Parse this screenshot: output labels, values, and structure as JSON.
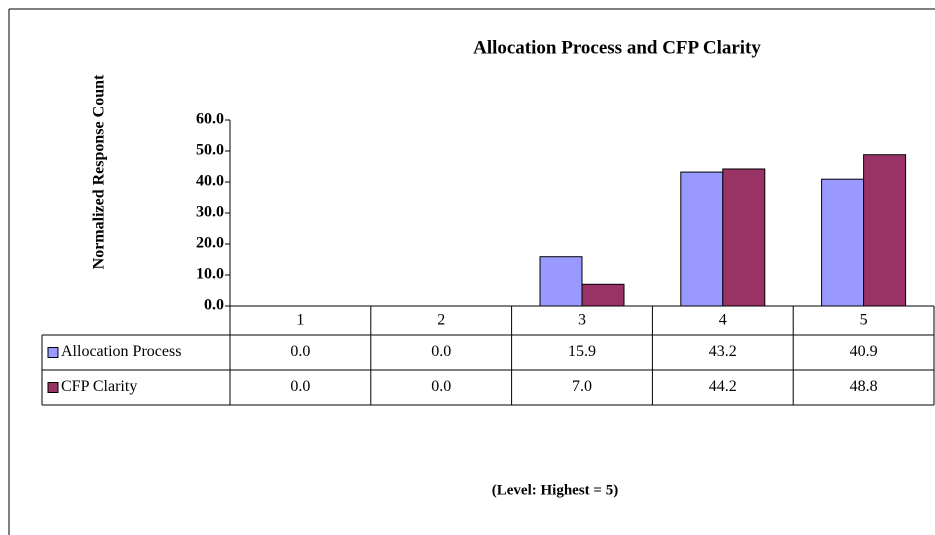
{
  "chart_data": {
    "type": "bar",
    "title": "Allocation Process and CFP Clarity",
    "y_label": "Normalized Response Count",
    "x_label": "(Level: Highest = 5)",
    "categories": [
      "1",
      "2",
      "3",
      "4",
      "5"
    ],
    "series": [
      {
        "name": "Allocation Process",
        "color": "#9999ff",
        "values": [
          0,
          0,
          15.9,
          43.2,
          40.9
        ],
        "value_labels": [
          "0.0",
          "0.0",
          "15.9",
          "43.2",
          "40.9"
        ]
      },
      {
        "name": "CFP Clarity",
        "color": "#993366",
        "values": [
          0,
          0,
          7,
          44.2,
          48.8
        ],
        "value_labels": [
          "0.0",
          "0.0",
          "7.0",
          "44.2",
          "48.8"
        ]
      }
    ],
    "ylim": [
      0,
      60
    ],
    "yticks": [
      {
        "value": 0,
        "label": "0.0"
      },
      {
        "value": 10,
        "label": "10.0"
      },
      {
        "value": 20,
        "label": "20.0"
      },
      {
        "value": 30,
        "label": "30.0"
      },
      {
        "value": 40,
        "label": "40.0"
      },
      {
        "value": 50,
        "label": "50.0"
      },
      {
        "value": 60,
        "label": "60.0"
      }
    ]
  }
}
